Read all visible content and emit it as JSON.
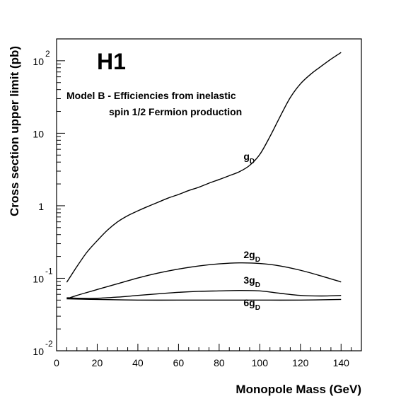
{
  "chart_data": {
    "type": "line",
    "title": "H1",
    "subtitle_line1": "Model B - Efficiencies from inelastic",
    "subtitle_line2": "spin 1/2 Fermion production",
    "xlabel": "Monopole Mass (GeV)",
    "ylabel": "Cross section upper limit (pb)",
    "xlim": [
      0,
      150
    ],
    "ylim": [
      0.01,
      200
    ],
    "yscale": "log",
    "grid": false,
    "x_ticks": [
      "0",
      "20",
      "40",
      "60",
      "80",
      "100",
      "120",
      "140"
    ],
    "y_ticks": [
      {
        "mantissa": "10",
        "exp": "-2",
        "value": 0.01
      },
      {
        "mantissa": "10",
        "exp": "-1",
        "value": 0.1
      },
      {
        "mantissa": "1",
        "exp": "",
        "value": 1
      },
      {
        "mantissa": "10",
        "exp": "",
        "value": 10
      },
      {
        "mantissa": "10",
        "exp": "2",
        "value": 100
      }
    ],
    "series": [
      {
        "name": "g",
        "name_sub": "D",
        "x": [
          5,
          10,
          15,
          20,
          25,
          30,
          35,
          40,
          45,
          50,
          55,
          60,
          65,
          70,
          75,
          80,
          85,
          90,
          95,
          100,
          105,
          110,
          115,
          120,
          125,
          130,
          135,
          140
        ],
        "y": [
          0.088,
          0.145,
          0.23,
          0.33,
          0.46,
          0.6,
          0.73,
          0.85,
          0.98,
          1.12,
          1.28,
          1.43,
          1.62,
          1.8,
          2.05,
          2.3,
          2.6,
          2.95,
          3.6,
          5.1,
          9.0,
          17.0,
          31.0,
          48.0,
          65.0,
          83.0,
          105.0,
          130.0
        ]
      },
      {
        "name": "2g",
        "name_sub": "D",
        "x": [
          5,
          10,
          20,
          30,
          40,
          50,
          60,
          70,
          80,
          90,
          100,
          110,
          120,
          130,
          140
        ],
        "y": [
          0.052,
          0.058,
          0.07,
          0.084,
          0.101,
          0.118,
          0.134,
          0.148,
          0.158,
          0.163,
          0.16,
          0.148,
          0.129,
          0.108,
          0.089
        ]
      },
      {
        "name": "3g",
        "name_sub": "D",
        "x": [
          5,
          10,
          20,
          30,
          40,
          50,
          60,
          70,
          80,
          90,
          100,
          110,
          120,
          130,
          140
        ],
        "y": [
          0.054,
          0.053,
          0.053,
          0.055,
          0.058,
          0.061,
          0.064,
          0.066,
          0.067,
          0.068,
          0.067,
          0.062,
          0.058,
          0.057,
          0.058
        ]
      },
      {
        "name": "6g",
        "name_sub": "D",
        "x": [
          5,
          20,
          40,
          60,
          80,
          100,
          120,
          140
        ],
        "y": [
          0.052,
          0.051,
          0.05,
          0.05,
          0.05,
          0.05,
          0.05,
          0.051
        ]
      }
    ],
    "series_labels": [
      {
        "x": 92,
        "y": 4.3
      },
      {
        "x": 92,
        "y": 0.19
      },
      {
        "x": 92,
        "y": 0.084
      },
      {
        "x": 92,
        "y": 0.041
      }
    ]
  }
}
